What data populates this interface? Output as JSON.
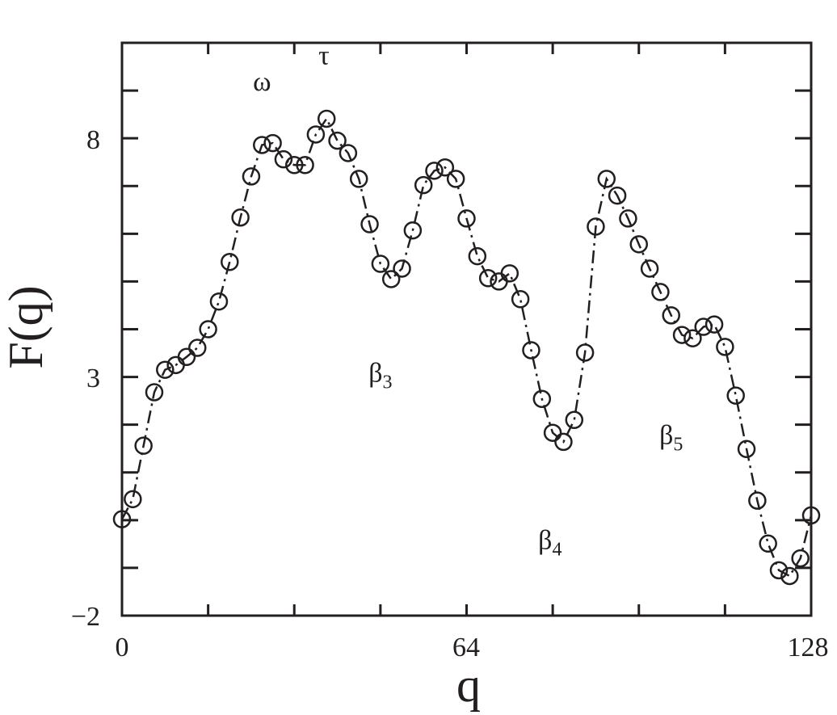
{
  "chart_data": {
    "type": "line",
    "title": "",
    "xlabel": "q",
    "ylabel": "F(q)",
    "xlim": [
      0,
      128
    ],
    "ylim": [
      -2,
      10
    ],
    "x_tick_labels": [
      "0",
      "64",
      "128"
    ],
    "y_tick_labels": [
      "−2",
      "3",
      "8"
    ],
    "grid": false,
    "marker": "open-circle",
    "line_style": "dash-dot",
    "color": "#231f20",
    "series": [
      {
        "x": [
          0,
          2,
          4,
          6,
          8,
          10,
          12,
          14,
          16,
          18,
          20,
          22,
          24,
          26,
          28,
          30,
          32,
          34,
          36,
          38,
          40,
          42,
          44,
          46,
          48,
          50,
          52,
          54,
          56,
          58,
          60,
          62,
          64,
          66,
          68,
          70,
          72,
          74,
          76,
          78,
          80,
          82,
          84,
          86,
          88,
          90,
          92,
          94,
          96,
          98,
          100,
          102,
          104,
          106,
          108,
          110,
          112,
          114,
          116,
          118,
          120,
          122,
          124,
          126,
          128
        ],
        "y": [
          0.02,
          0.44,
          1.56,
          2.68,
          3.15,
          3.25,
          3.42,
          3.61,
          4.0,
          4.58,
          5.41,
          6.34,
          7.2,
          7.86,
          7.9,
          7.56,
          7.44,
          7.44,
          8.08,
          8.41,
          7.95,
          7.69,
          7.15,
          6.2,
          5.37,
          5.05,
          5.27,
          6.07,
          7.02,
          7.32,
          7.39,
          7.15,
          6.32,
          5.53,
          5.07,
          5.0,
          5.17,
          4.63,
          3.56,
          2.54,
          1.83,
          1.64,
          2.1,
          3.51,
          6.15,
          7.15,
          6.8,
          6.32,
          5.78,
          5.27,
          4.78,
          4.29,
          3.88,
          3.81,
          4.05,
          4.1,
          3.63,
          2.61,
          1.49,
          0.41,
          -0.49,
          -1.05,
          -1.17,
          -0.8,
          0.1
        ]
      }
    ],
    "annotations": [
      {
        "text": "ω",
        "sub": "",
        "x": 26,
        "y": 9.0
      },
      {
        "text": "τ",
        "sub": "",
        "x": 37.5,
        "y": 9.55
      },
      {
        "text": "β",
        "sub": "3",
        "x": 48,
        "y": 2.9
      },
      {
        "text": "β",
        "sub": "4",
        "x": 79.5,
        "y": -0.6
      },
      {
        "text": "β",
        "sub": "5",
        "x": 102,
        "y": 1.6
      }
    ]
  }
}
